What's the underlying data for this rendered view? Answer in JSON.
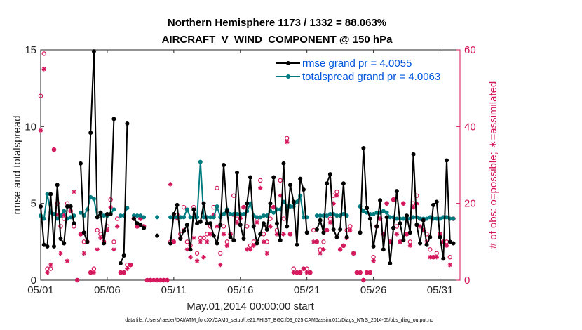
{
  "chart_data": {
    "type": "line",
    "title_line1": "Northern Hemisphere 1173 / 1332 = 88.063%",
    "title_line2": "AIRCRAFT_V_WIND_COMPONENT @ 150 hPa",
    "xlabel": "May.01,2014 00:00:00 start",
    "ylabel_left": "rmse and totalspread",
    "ylabel_right": "# of obs: o=possible; ∗=assimilated",
    "xlim": [
      0,
      31.5
    ],
    "ylim_left": [
      0,
      15
    ],
    "ylim_right": [
      0,
      60
    ],
    "x_ticks": [
      {
        "value": 0,
        "label": "05/01"
      },
      {
        "value": 5,
        "label": "05/06"
      },
      {
        "value": 10,
        "label": "05/11"
      },
      {
        "value": 15,
        "label": "05/16"
      },
      {
        "value": 20,
        "label": "05/21"
      },
      {
        "value": 25,
        "label": "05/26"
      },
      {
        "value": 30,
        "label": "05/31"
      }
    ],
    "y_ticks_left": [
      "0",
      "5",
      "10",
      "15"
    ],
    "y_ticks_right": [
      "0",
      "20",
      "40",
      "60"
    ],
    "legend": [
      {
        "label": "rmse grand pr = 4.0055",
        "series": "rmse"
      },
      {
        "label": "totalspread grand pr = 4.0063",
        "series": "totalspread"
      }
    ],
    "series": [
      {
        "name": "rmse",
        "axis": "left",
        "x": [
          0.0,
          0.25,
          0.5,
          0.75,
          1.0,
          1.25,
          1.5,
          1.75,
          2.0,
          2.25,
          2.5,
          2.75,
          3.0,
          3.25,
          3.5,
          3.75,
          4.0,
          4.25,
          4.5,
          4.75,
          5.0,
          5.25,
          5.5,
          5.75,
          6.0,
          6.25,
          6.5,
          6.75,
          7.0,
          7.25,
          7.5,
          7.75,
          "gap",
          8.75,
          "gap",
          9.75,
          10.0,
          10.25,
          10.5,
          10.75,
          11.0,
          11.25,
          11.5,
          11.75,
          12.0,
          12.25,
          12.5,
          12.75,
          13.0,
          13.25,
          13.5,
          13.75,
          14.0,
          14.25,
          14.5,
          14.75,
          15.0,
          15.25,
          15.5,
          15.75,
          16.0,
          16.25,
          16.5,
          16.75,
          17.0,
          17.25,
          17.5,
          17.75,
          18.0,
          18.25,
          18.5,
          18.75,
          19.0,
          19.25,
          19.5,
          19.75,
          20.0,
          "gap",
          20.75,
          21.0,
          21.25,
          21.5,
          21.75,
          22.0,
          22.25,
          22.5,
          22.75,
          23.0,
          "gap",
          24.0,
          24.25,
          24.5,
          24.75,
          25.0,
          25.25,
          25.5,
          25.75,
          26.0,
          26.25,
          26.5,
          26.75,
          27.0,
          27.25,
          27.5,
          27.75,
          28.0,
          28.25,
          28.5,
          28.75,
          29.0,
          29.25,
          29.5,
          29.75,
          30.0,
          30.25,
          30.5,
          30.75,
          31.0
        ],
        "y": [
          4.8,
          2.3,
          2.2,
          5.6,
          2.2,
          6.2,
          2.7,
          2.4,
          4.8,
          4.8,
          3.7,
          null,
          7.6,
          3.1,
          2.5,
          9.6,
          14.9,
          4.1,
          4.4,
          2.4,
          4.3,
          4.3,
          10.5,
          null,
          1.1,
          1.6,
          10.2,
          null,
          4.0,
          3.7,
          3.6,
          3.4,
          null,
          2.9,
          null,
          2.4,
          4.3,
          4.9,
          2.7,
          3.2,
          3.6,
          2.0,
          4.6,
          3.7,
          3.8,
          5.0,
          3.7,
          3.7,
          2.9,
          2.4,
          3.6,
          7.5,
          4.5,
          2.8,
          2.6,
          7.0,
          3.6,
          2.7,
          5.0,
          6.7,
          3.5,
          2.4,
          3.0,
          3.7,
          3.3,
          5.0,
          6.7,
          3.7,
          2.6,
          7.6,
          3.5,
          6.2,
          5.1,
          2.3,
          6.6,
          5.9,
          3.1,
          null,
          3.3,
          3.9,
          3.1,
          6.3,
          6.9,
          3.3,
          2.8,
          3.3,
          6.3,
          2.8,
          null,
          3.1,
          8.6,
          4.7,
          4.0,
          2.2,
          3.5,
          5.2,
          2.0,
          4.1,
          1.1,
          3.4,
          5.8,
          3.7,
          2.6,
          4.2,
          3.1,
          8.2,
          3.6,
          2.4,
          3.9,
          2.3,
          2.8,
          4.9,
          5.1,
          2.8,
          1.4,
          7.8,
          2.5,
          2.4
        ],
        "color": "#000000"
      },
      {
        "name": "totalspread",
        "axis": "left",
        "x": [
          0.0,
          0.25,
          0.5,
          0.75,
          1.0,
          1.25,
          1.5,
          1.75,
          2.0,
          2.25,
          2.5,
          2.75,
          3.0,
          3.25,
          3.5,
          3.75,
          4.0,
          4.25,
          4.5,
          4.75,
          5.0,
          5.25,
          5.5,
          5.75,
          6.0,
          6.25,
          6.5,
          6.75,
          7.0,
          7.25,
          7.5,
          7.75,
          "gap",
          8.75,
          "gap",
          9.75,
          10.0,
          10.25,
          10.5,
          10.75,
          11.0,
          11.25,
          11.5,
          11.75,
          12.0,
          12.25,
          12.5,
          12.75,
          13.0,
          13.25,
          13.5,
          13.75,
          14.0,
          14.25,
          14.5,
          14.75,
          15.0,
          15.25,
          15.5,
          15.75,
          16.0,
          16.25,
          16.5,
          16.75,
          17.0,
          17.25,
          17.5,
          17.75,
          18.0,
          18.25,
          18.5,
          18.75,
          19.0,
          19.25,
          19.5,
          19.75,
          20.0,
          "gap",
          20.75,
          21.0,
          21.25,
          21.5,
          21.75,
          22.0,
          22.25,
          22.5,
          22.75,
          23.0,
          "gap",
          24.0,
          24.25,
          24.5,
          24.75,
          25.0,
          25.25,
          25.5,
          25.75,
          26.0,
          26.25,
          26.5,
          26.75,
          27.0,
          27.25,
          27.5,
          27.75,
          28.0,
          28.25,
          28.5,
          28.75,
          29.0,
          29.25,
          29.5,
          29.75,
          30.0,
          30.25,
          30.5,
          30.75,
          31.0
        ],
        "y": [
          4.2,
          4.0,
          5.6,
          4.4,
          4.3,
          4.0,
          4.2,
          4.5,
          4.0,
          4.1,
          4.2,
          null,
          4.4,
          4.2,
          4.6,
          5.4,
          5.3,
          4.1,
          4.4,
          4.2,
          4.2,
          4.3,
          4.6,
          null,
          4.2,
          4.2,
          4.7,
          null,
          4.2,
          4.2,
          4.2,
          4.1,
          null,
          4.1,
          null,
          4.1,
          4.1,
          4.1,
          4.1,
          4.1,
          4.6,
          4.1,
          4.1,
          4.1,
          7.7,
          4.1,
          4.1,
          4.1,
          4.1,
          4.8,
          4.1,
          4.3,
          4.6,
          4.3,
          4.3,
          4.3,
          4.3,
          4.3,
          4.5,
          5.0,
          4.2,
          4.1,
          4.1,
          4.2,
          4.2,
          4.5,
          4.4,
          4.6,
          4.6,
          5.1,
          4.8,
          4.8,
          4.8,
          5.1,
          5.5,
          4.1,
          4.1,
          null,
          4.2,
          4.2,
          4.2,
          4.2,
          4.3,
          4.3,
          4.2,
          4.2,
          4.3,
          4.2,
          null,
          4.8,
          4.5,
          4.4,
          4.3,
          4.3,
          4.4,
          4.4,
          4.5,
          4.4,
          4.1,
          4.1,
          4.0,
          4.0,
          4.0,
          4.0,
          4.0,
          4.1,
          4.1,
          4.0,
          4.0,
          4.0,
          4.1,
          4.0,
          4.0,
          4.0,
          4.1,
          4.1,
          4.0,
          4.0
        ],
        "color": "#007c80"
      },
      {
        "name": "# obs possible",
        "axis": "right",
        "marker": "o",
        "x": [
          0.0,
          0.25,
          0.5,
          0.75,
          1.0,
          1.25,
          1.5,
          1.75,
          2.0,
          2.25,
          2.5,
          2.75,
          3.0,
          3.25,
          3.5,
          3.75,
          4.0,
          4.25,
          4.5,
          4.75,
          5.0,
          5.25,
          5.5,
          5.75,
          6.0,
          6.25,
          6.5,
          6.75,
          7.0,
          7.25,
          7.5,
          7.75,
          8.0,
          8.25,
          8.5,
          8.75,
          9.0,
          9.25,
          9.5,
          9.75,
          10.0,
          10.25,
          10.5,
          10.75,
          11.0,
          11.25,
          11.5,
          11.75,
          12.0,
          12.25,
          12.5,
          12.75,
          13.0,
          13.25,
          13.5,
          13.75,
          14.0,
          14.25,
          14.5,
          14.75,
          15.0,
          15.25,
          15.5,
          15.75,
          16.0,
          16.25,
          16.5,
          16.75,
          17.0,
          17.25,
          17.5,
          17.75,
          18.0,
          18.25,
          18.5,
          18.75,
          19.0,
          19.25,
          19.5,
          19.75,
          20.0,
          20.25,
          20.5,
          20.75,
          21.0,
          21.25,
          21.5,
          21.75,
          22.0,
          22.25,
          22.5,
          22.75,
          23.0,
          23.25,
          23.5,
          23.75,
          24.0,
          24.25,
          24.5,
          24.75,
          25.0,
          25.25,
          25.5,
          25.75,
          26.0,
          26.25,
          26.5,
          26.75,
          27.0,
          27.25,
          27.5,
          27.75,
          28.0,
          28.25,
          28.5,
          28.75,
          29.0,
          29.25,
          29.5,
          29.75,
          30.0,
          30.25,
          30.5,
          30.75,
          31.0
        ],
        "y": [
          48,
          59,
          3,
          3,
          34,
          20,
          14,
          16,
          20,
          18,
          14,
          0,
          12,
          10,
          10,
          2,
          3,
          13,
          12,
          10,
          14,
          21,
          10,
          16,
          2,
          2,
          4,
          4,
          16,
          14,
          16,
          14,
          0,
          0,
          0,
          0,
          0,
          0,
          0,
          10,
          10,
          17,
          12,
          19,
          10,
          9,
          19,
          7,
          11,
          11,
          12,
          14,
          19,
          24,
          7,
          14,
          10,
          12,
          22,
          16,
          17,
          19,
          14,
          9,
          10,
          16,
          26,
          12,
          10,
          16,
          19,
          13,
          26,
          16,
          37,
          12,
          3,
          2,
          2,
          3,
          3,
          2,
          13,
          10,
          8,
          10,
          13,
          16,
          22,
          23,
          8,
          9,
          13,
          14,
          7,
          2,
          2,
          0,
          2,
          2,
          6,
          14,
          16,
          12,
          20,
          10,
          21,
          14,
          10,
          20,
          12,
          10,
          20,
          22,
          16,
          13,
          12,
          8,
          6,
          7,
          12,
          10,
          10,
          6,
          16
        ]
      },
      {
        "name": "# obs assimilated",
        "axis": "right",
        "marker": "*",
        "x": [
          0.0,
          0.25,
          0.5,
          0.75,
          1.0,
          1.25,
          1.5,
          1.75,
          2.0,
          2.25,
          2.5,
          2.75,
          3.0,
          3.25,
          3.5,
          3.75,
          4.0,
          4.25,
          4.5,
          4.75,
          5.0,
          5.25,
          5.5,
          5.75,
          6.0,
          6.25,
          6.5,
          6.75,
          7.0,
          7.25,
          7.5,
          7.75,
          8.0,
          8.25,
          8.5,
          8.75,
          9.0,
          9.25,
          9.5,
          9.75,
          10.0,
          10.25,
          10.5,
          10.75,
          11.0,
          11.25,
          11.5,
          11.75,
          12.0,
          12.25,
          12.5,
          12.75,
          13.0,
          13.25,
          13.5,
          13.75,
          14.0,
          14.25,
          14.5,
          14.75,
          15.0,
          15.25,
          15.5,
          15.75,
          16.0,
          16.25,
          16.5,
          16.75,
          17.0,
          17.25,
          17.5,
          17.75,
          18.0,
          18.25,
          18.5,
          18.75,
          19.0,
          19.25,
          19.5,
          19.75,
          20.0,
          20.25,
          20.5,
          20.75,
          21.0,
          21.25,
          21.5,
          21.75,
          22.0,
          22.25,
          22.5,
          22.75,
          23.0,
          23.25,
          23.5,
          23.75,
          24.0,
          24.25,
          24.5,
          24.75,
          25.0,
          25.25,
          25.5,
          25.75,
          26.0,
          26.25,
          26.5,
          26.75,
          27.0,
          27.25,
          27.5,
          27.75,
          28.0,
          28.25,
          28.5,
          28.75,
          29.0,
          29.25,
          29.5,
          29.75,
          30.0,
          30.25,
          30.5,
          30.75,
          31.0
        ],
        "y": [
          39,
          55,
          2,
          4,
          34,
          17,
          7,
          17,
          5,
          18,
          23,
          0,
          12,
          7,
          10,
          2,
          2,
          8,
          11,
          10,
          13,
          19,
          8,
          14,
          2,
          2,
          3,
          4,
          16,
          14,
          16,
          14,
          0,
          0,
          0,
          0,
          0,
          0,
          0,
          25,
          10,
          16,
          11,
          13,
          8,
          6,
          11,
          5,
          10,
          6,
          10,
          12,
          17,
          14,
          4,
          12,
          9,
          12,
          17,
          15,
          16,
          19,
          8,
          8,
          9,
          15,
          24,
          10,
          7,
          14,
          19,
          12,
          22,
          12,
          36,
          12,
          2,
          2,
          2,
          3,
          2,
          2,
          10,
          10,
          7,
          8,
          13,
          15,
          20,
          22,
          8,
          9,
          11,
          13,
          7,
          2,
          2,
          0,
          2,
          2,
          5,
          14,
          16,
          12,
          20,
          10,
          21,
          12,
          10,
          20,
          12,
          9,
          19,
          20,
          14,
          13,
          10,
          6,
          6,
          6,
          12,
          10,
          9,
          4,
          16
        ]
      }
    ],
    "footer_text": "data file: /Users/raeder/DAI/ATM_forcXX/CAM6_setup/f.e21.FHIST_BGC.f09_025.CAM6assim.011/Diags_NTrS_2014-05/obs_diag_output.nc"
  },
  "colors": {
    "rmse": "#000000",
    "totalspread": "#007c80",
    "obs": "#d4145a",
    "legend_text": "#0055dd"
  }
}
